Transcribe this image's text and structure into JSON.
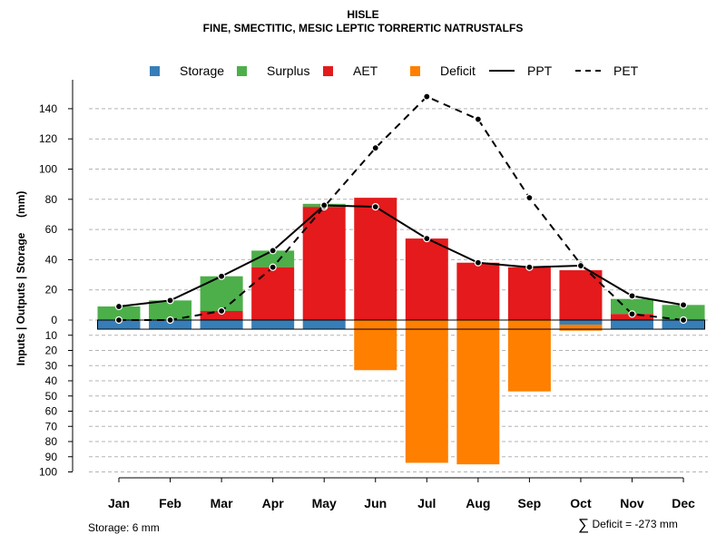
{
  "chart_data": {
    "type": "bar",
    "title": "HISLE",
    "subtitle": "FINE, SMECTITIC, MESIC LEPTIC TORRERTIC NATRUSTALFS",
    "ylabel": "Inputs | Outputs | Storage     (mm)",
    "categories": [
      "Jan",
      "Feb",
      "Mar",
      "Apr",
      "May",
      "Jun",
      "Jul",
      "Aug",
      "Sep",
      "Oct",
      "Nov",
      "Dec"
    ],
    "positive_axis": {
      "ylim": [
        0,
        150
      ],
      "ticks": [
        0,
        20,
        40,
        60,
        80,
        100,
        120,
        140
      ]
    },
    "negative_axis": {
      "ylim": [
        0,
        100
      ],
      "ticks": [
        10,
        20,
        30,
        40,
        50,
        60,
        70,
        80,
        90,
        100
      ]
    },
    "series": [
      {
        "name": "Storage",
        "color": "#377EB8",
        "values": [
          -6,
          -6,
          -6,
          -6,
          -6,
          0,
          0,
          0,
          0,
          -3,
          -6,
          -6
        ]
      },
      {
        "name": "AET",
        "color": "#E41A1C",
        "values": [
          0,
          0,
          6,
          35,
          75,
          81,
          54,
          38,
          35,
          33,
          4,
          0
        ]
      },
      {
        "name": "Surplus",
        "color": "#4DAF4A",
        "values": [
          9,
          13,
          23,
          11,
          2,
          0,
          0,
          0,
          0,
          0,
          10,
          10
        ]
      },
      {
        "name": "Deficit",
        "color": "#FF7F00",
        "values": [
          0,
          0,
          0,
          0,
          0,
          -33,
          -94,
          -95,
          -47,
          -4,
          0,
          0
        ]
      },
      {
        "name": "PPT",
        "line": "solid",
        "values": [
          9,
          13,
          29,
          46,
          76,
          75,
          54,
          38,
          35,
          36,
          16,
          10
        ]
      },
      {
        "name": "PET",
        "line": "dashed",
        "values": [
          0,
          0,
          6,
          35,
          75,
          114,
          148,
          133,
          81,
          37,
          4,
          0
        ]
      }
    ],
    "legend_labels": {
      "storage": "Storage",
      "surplus": "Surplus",
      "aet": "AET",
      "deficit": "Deficit",
      "ppt": "PPT",
      "pet": "PET"
    },
    "storage_note": "Storage: 6 mm",
    "deficit_note": "Deficit = -273 mm",
    "grid": true
  }
}
